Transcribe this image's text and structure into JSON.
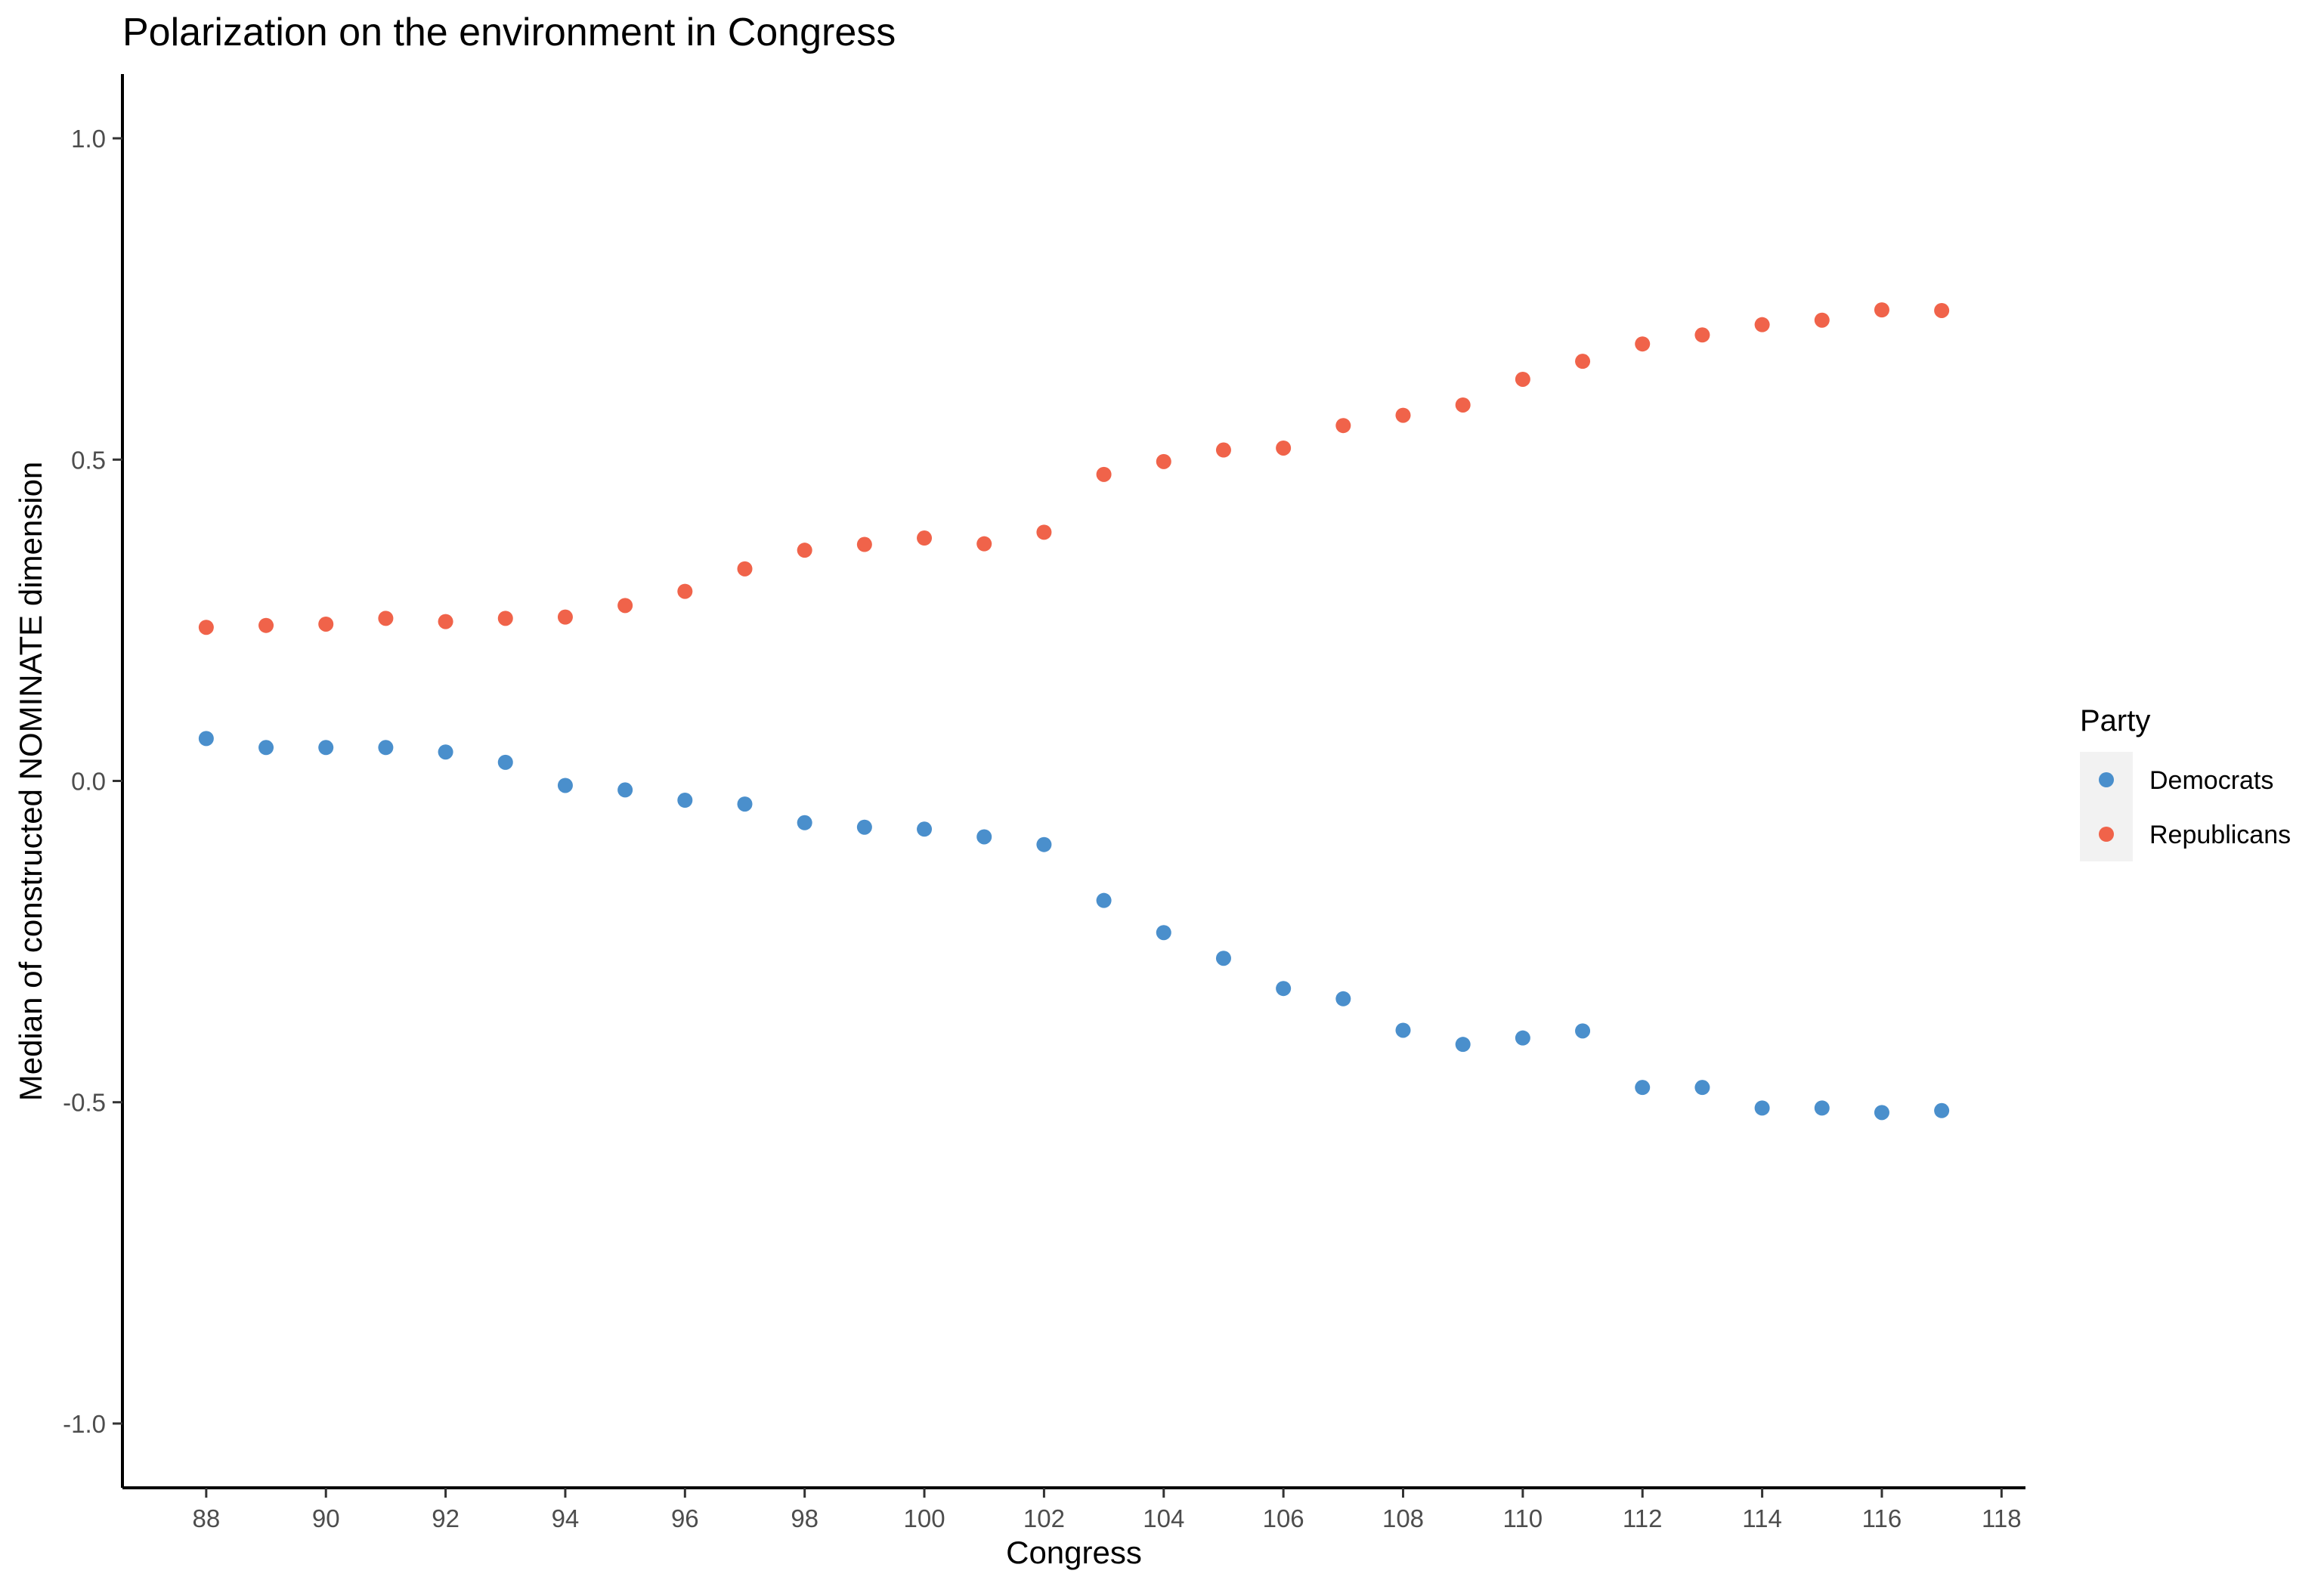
{
  "chart_data": {
    "type": "scatter",
    "title": "Polarization on the environment in Congress",
    "xlabel": "Congress",
    "ylabel": "Median of constructed NOMINATE dimension",
    "xlim": [
      86.6,
      118.4
    ],
    "ylim": [
      -1.1,
      1.1
    ],
    "x_ticks": [
      88,
      90,
      92,
      94,
      96,
      98,
      100,
      102,
      104,
      106,
      108,
      110,
      112,
      114,
      116,
      118
    ],
    "y_ticks": [
      -1.0,
      -0.5,
      0.0,
      0.5,
      1.0
    ],
    "x_tick_labels": [
      "88",
      "90",
      "92",
      "94",
      "96",
      "98",
      "100",
      "102",
      "104",
      "106",
      "108",
      "110",
      "112",
      "114",
      "116",
      "118"
    ],
    "y_tick_labels": [
      "-1.0",
      "-0.5",
      "0.0",
      "0.5",
      "1.0"
    ],
    "grid": false,
    "legend": {
      "title": "Party",
      "position": "right"
    },
    "x": [
      88,
      89,
      90,
      91,
      92,
      93,
      94,
      95,
      96,
      97,
      98,
      99,
      100,
      101,
      102,
      103,
      104,
      105,
      106,
      107,
      108,
      109,
      110,
      111,
      112,
      113,
      114,
      115,
      116,
      117
    ],
    "series": [
      {
        "name": "Democrats",
        "color": "#4A8FCC",
        "values": [
          0.066,
          0.052,
          0.052,
          0.052,
          0.045,
          0.029,
          -0.007,
          -0.014,
          -0.03,
          -0.036,
          -0.065,
          -0.072,
          -0.075,
          -0.087,
          -0.099,
          -0.186,
          -0.236,
          -0.276,
          -0.323,
          -0.339,
          -0.388,
          -0.41,
          -0.4,
          -0.389,
          -0.477,
          -0.477,
          -0.509,
          -0.509,
          -0.516,
          -0.513
        ]
      },
      {
        "name": "Republicans",
        "color": "#F0634A",
        "values": [
          0.239,
          0.242,
          0.244,
          0.253,
          0.248,
          0.253,
          0.255,
          0.273,
          0.295,
          0.33,
          0.359,
          0.368,
          0.378,
          0.369,
          0.387,
          0.477,
          0.497,
          0.515,
          0.518,
          0.553,
          0.569,
          0.585,
          0.625,
          0.653,
          0.68,
          0.694,
          0.71,
          0.717,
          0.733,
          0.732
        ]
      }
    ]
  }
}
